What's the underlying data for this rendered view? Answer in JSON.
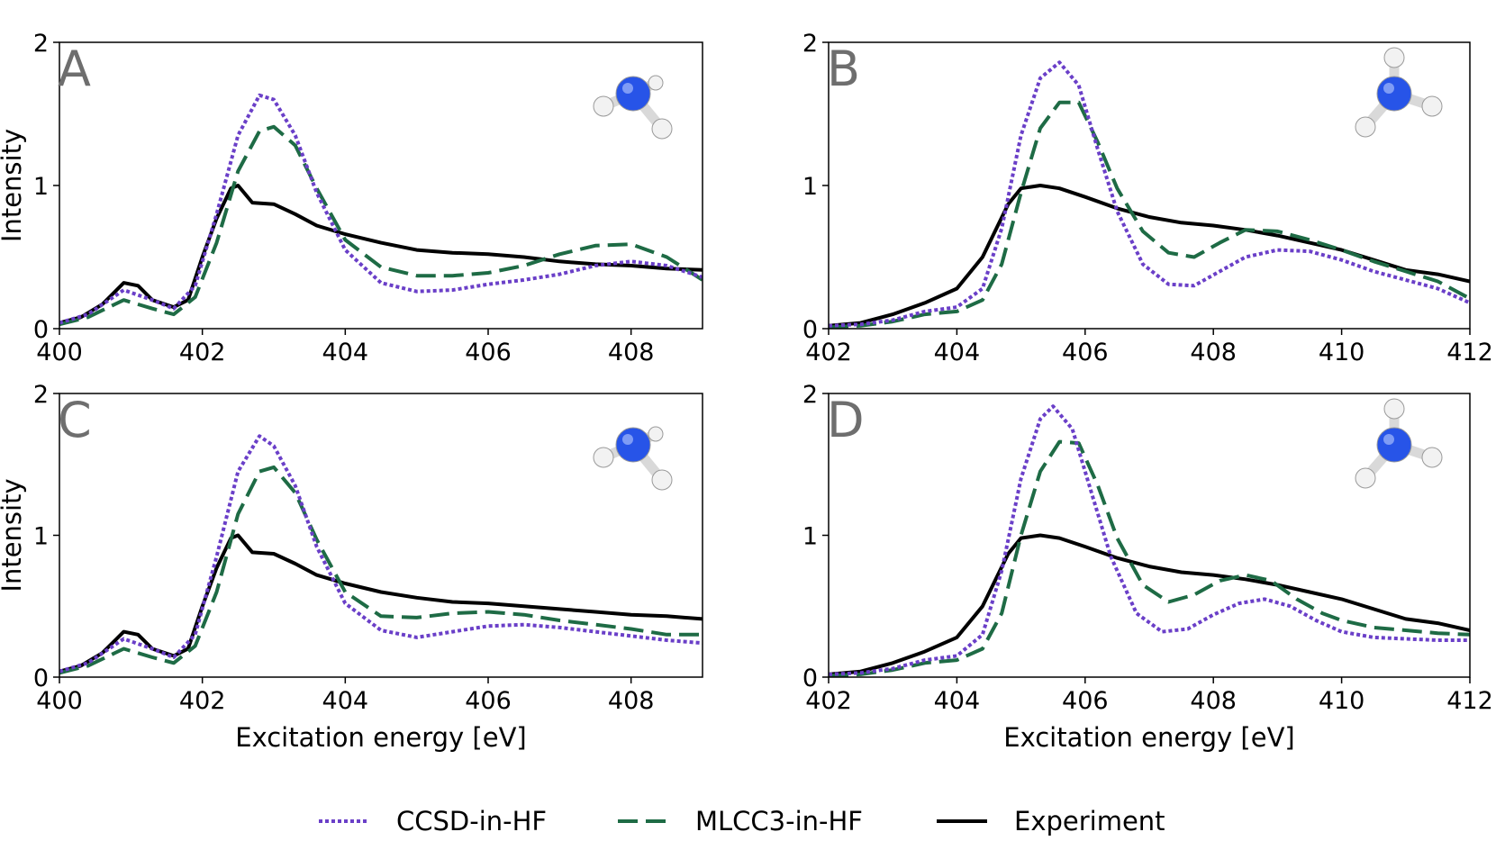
{
  "series_styles": [
    {
      "name": "CCSD-in-HF",
      "color": "#6a3fc8",
      "dash": "dotted"
    },
    {
      "name": "MLCC3-in-HF",
      "color": "#1e6b45",
      "dash": "dashed"
    },
    {
      "name": "Experiment",
      "color": "#000000",
      "dash": "solid"
    }
  ],
  "chart_data": [
    {
      "type": "line",
      "panel": "A",
      "xlabel": "",
      "ylabel": "Intensity",
      "xlim": [
        400,
        409
      ],
      "ylim": [
        0,
        2
      ],
      "xticks": [
        "400",
        "402",
        "404",
        "406",
        "408"
      ],
      "yticks": [
        "0",
        "1",
        "2"
      ],
      "molecule": "ammonia-tilted",
      "series": [
        {
          "name": "CCSD-in-HF",
          "x": [
            400,
            400.4,
            400.9,
            401.3,
            401.6,
            401.9,
            402.2,
            402.5,
            402.8,
            403.0,
            403.3,
            403.6,
            404.0,
            404.5,
            405.0,
            405.5,
            406.0,
            406.5,
            407.0,
            407.5,
            408.0,
            408.5,
            409.0
          ],
          "y": [
            0.04,
            0.1,
            0.27,
            0.2,
            0.14,
            0.3,
            0.8,
            1.35,
            1.63,
            1.6,
            1.35,
            0.95,
            0.55,
            0.32,
            0.26,
            0.27,
            0.31,
            0.34,
            0.38,
            0.44,
            0.47,
            0.44,
            0.36
          ]
        },
        {
          "name": "MLCC3-in-HF",
          "x": [
            400,
            400.4,
            400.9,
            401.3,
            401.6,
            401.9,
            402.2,
            402.5,
            402.8,
            403.0,
            403.3,
            403.6,
            404.0,
            404.5,
            405.0,
            405.5,
            406.0,
            406.5,
            407.0,
            407.5,
            408.0,
            408.5,
            409.0
          ],
          "y": [
            0.03,
            0.08,
            0.2,
            0.14,
            0.1,
            0.22,
            0.6,
            1.1,
            1.38,
            1.41,
            1.28,
            0.98,
            0.62,
            0.43,
            0.37,
            0.37,
            0.39,
            0.44,
            0.52,
            0.58,
            0.59,
            0.5,
            0.34
          ]
        },
        {
          "name": "Experiment",
          "x": [
            400,
            400.3,
            400.6,
            400.9,
            401.1,
            401.3,
            401.6,
            401.8,
            402.0,
            402.2,
            402.4,
            402.5,
            402.7,
            403.0,
            403.3,
            403.6,
            404.0,
            404.5,
            405.0,
            405.5,
            406.0,
            406.5,
            407.0,
            407.5,
            408.0,
            408.5,
            409.0
          ],
          "y": [
            0.04,
            0.08,
            0.17,
            0.32,
            0.3,
            0.2,
            0.15,
            0.2,
            0.5,
            0.77,
            0.98,
            1.0,
            0.88,
            0.87,
            0.8,
            0.72,
            0.66,
            0.6,
            0.55,
            0.53,
            0.52,
            0.5,
            0.47,
            0.45,
            0.44,
            0.42,
            0.41
          ]
        }
      ]
    },
    {
      "type": "line",
      "panel": "B",
      "xlabel": "",
      "ylabel": "",
      "xlim": [
        402,
        412
      ],
      "ylim": [
        0,
        2
      ],
      "xticks": [
        "402",
        "404",
        "406",
        "408",
        "410",
        "412"
      ],
      "yticks": [
        "0",
        "1",
        "2"
      ],
      "molecule": "ammonia-upright",
      "series": [
        {
          "name": "CCSD-in-HF",
          "x": [
            402,
            402.5,
            403,
            403.5,
            404,
            404.4,
            404.7,
            405.0,
            405.3,
            405.6,
            405.9,
            406.2,
            406.5,
            406.9,
            407.3,
            407.7,
            408.1,
            408.5,
            409.0,
            409.5,
            410.0,
            410.5,
            411.0,
            411.5,
            412.0
          ],
          "y": [
            0.02,
            0.03,
            0.06,
            0.12,
            0.15,
            0.28,
            0.7,
            1.35,
            1.75,
            1.86,
            1.7,
            1.25,
            0.82,
            0.45,
            0.31,
            0.3,
            0.4,
            0.5,
            0.55,
            0.54,
            0.48,
            0.4,
            0.34,
            0.28,
            0.18
          ]
        },
        {
          "name": "MLCC3-in-HF",
          "x": [
            402,
            402.5,
            403,
            403.5,
            404,
            404.4,
            404.7,
            405.0,
            405.3,
            405.6,
            405.9,
            406.2,
            406.5,
            406.9,
            407.3,
            407.7,
            408.1,
            408.5,
            409.0,
            409.5,
            410.0,
            410.5,
            411.0,
            411.5,
            412.0
          ],
          "y": [
            0.01,
            0.02,
            0.05,
            0.1,
            0.12,
            0.2,
            0.45,
            0.95,
            1.4,
            1.58,
            1.58,
            1.3,
            0.98,
            0.68,
            0.53,
            0.5,
            0.6,
            0.69,
            0.68,
            0.62,
            0.55,
            0.47,
            0.4,
            0.33,
            0.21
          ]
        },
        {
          "name": "Experiment",
          "x": [
            402,
            402.5,
            403,
            403.5,
            404,
            404.4,
            404.8,
            405.0,
            405.3,
            405.6,
            406.0,
            406.5,
            407.0,
            407.5,
            408.0,
            408.5,
            409.0,
            409.5,
            410.0,
            410.5,
            411.0,
            411.5,
            412.0
          ],
          "y": [
            0.02,
            0.04,
            0.1,
            0.18,
            0.28,
            0.5,
            0.87,
            0.98,
            1.0,
            0.98,
            0.92,
            0.84,
            0.78,
            0.74,
            0.72,
            0.69,
            0.65,
            0.6,
            0.55,
            0.48,
            0.41,
            0.38,
            0.33
          ]
        }
      ]
    },
    {
      "type": "line",
      "panel": "C",
      "xlabel": "Excitation energy [eV]",
      "ylabel": "Intensity",
      "xlim": [
        400,
        409
      ],
      "ylim": [
        0,
        2
      ],
      "xticks": [
        "400",
        "402",
        "404",
        "406",
        "408"
      ],
      "yticks": [
        "0",
        "1",
        "2"
      ],
      "molecule": "ammonia-tilted",
      "series": [
        {
          "name": "CCSD-in-HF",
          "x": [
            400,
            400.4,
            400.9,
            401.3,
            401.6,
            401.9,
            402.2,
            402.5,
            402.8,
            403.0,
            403.3,
            403.6,
            404.0,
            404.5,
            405.0,
            405.5,
            406.0,
            406.5,
            407.0,
            407.5,
            408.0,
            408.5,
            409.0
          ],
          "y": [
            0.04,
            0.1,
            0.27,
            0.2,
            0.14,
            0.3,
            0.85,
            1.45,
            1.7,
            1.63,
            1.35,
            0.92,
            0.52,
            0.33,
            0.28,
            0.32,
            0.36,
            0.37,
            0.35,
            0.32,
            0.29,
            0.26,
            0.24
          ]
        },
        {
          "name": "MLCC3-in-HF",
          "x": [
            400,
            400.4,
            400.9,
            401.3,
            401.6,
            401.9,
            402.2,
            402.5,
            402.8,
            403.0,
            403.3,
            403.6,
            404.0,
            404.5,
            405.0,
            405.5,
            406.0,
            406.5,
            407.0,
            407.5,
            408.0,
            408.5,
            409.0
          ],
          "y": [
            0.03,
            0.08,
            0.2,
            0.14,
            0.1,
            0.22,
            0.6,
            1.15,
            1.45,
            1.48,
            1.3,
            0.97,
            0.6,
            0.43,
            0.42,
            0.45,
            0.46,
            0.44,
            0.4,
            0.37,
            0.34,
            0.3,
            0.3
          ]
        },
        {
          "name": "Experiment",
          "x": [
            400,
            400.3,
            400.6,
            400.9,
            401.1,
            401.3,
            401.6,
            401.8,
            402.0,
            402.2,
            402.4,
            402.5,
            402.7,
            403.0,
            403.3,
            403.6,
            404.0,
            404.5,
            405.0,
            405.5,
            406.0,
            406.5,
            407.0,
            407.5,
            408.0,
            408.5,
            409.0
          ],
          "y": [
            0.04,
            0.08,
            0.17,
            0.32,
            0.3,
            0.2,
            0.15,
            0.2,
            0.5,
            0.77,
            0.98,
            1.0,
            0.88,
            0.87,
            0.8,
            0.72,
            0.66,
            0.6,
            0.56,
            0.53,
            0.52,
            0.5,
            0.48,
            0.46,
            0.44,
            0.43,
            0.41
          ]
        }
      ]
    },
    {
      "type": "line",
      "panel": "D",
      "xlabel": "Excitation energy [eV]",
      "ylabel": "",
      "xlim": [
        402,
        412
      ],
      "ylim": [
        0,
        2
      ],
      "xticks": [
        "402",
        "404",
        "406",
        "408",
        "410",
        "412"
      ],
      "yticks": [
        "0",
        "1",
        "2"
      ],
      "molecule": "ammonia-upright",
      "series": [
        {
          "name": "CCSD-in-HF",
          "x": [
            402,
            402.5,
            403,
            403.5,
            404,
            404.4,
            404.7,
            405.0,
            405.3,
            405.5,
            405.8,
            406.1,
            406.4,
            406.8,
            407.2,
            407.6,
            408.0,
            408.4,
            408.8,
            409.2,
            409.6,
            410.0,
            410.5,
            411.0,
            411.5,
            412.0
          ],
          "y": [
            0.02,
            0.03,
            0.06,
            0.12,
            0.15,
            0.3,
            0.75,
            1.4,
            1.82,
            1.91,
            1.75,
            1.3,
            0.85,
            0.45,
            0.32,
            0.34,
            0.44,
            0.52,
            0.55,
            0.5,
            0.4,
            0.32,
            0.28,
            0.27,
            0.26,
            0.26
          ]
        },
        {
          "name": "MLCC3-in-HF",
          "x": [
            402,
            402.5,
            403,
            403.5,
            404,
            404.4,
            404.7,
            405.0,
            405.3,
            405.6,
            405.9,
            406.2,
            406.5,
            406.9,
            407.3,
            407.7,
            408.1,
            408.5,
            408.9,
            409.3,
            409.7,
            410.0,
            410.5,
            411.0,
            411.5,
            412.0
          ],
          "y": [
            0.01,
            0.02,
            0.05,
            0.1,
            0.12,
            0.2,
            0.45,
            1.0,
            1.45,
            1.66,
            1.65,
            1.35,
            0.98,
            0.65,
            0.53,
            0.58,
            0.68,
            0.72,
            0.68,
            0.55,
            0.45,
            0.4,
            0.35,
            0.33,
            0.31,
            0.3
          ]
        },
        {
          "name": "Experiment",
          "x": [
            402,
            402.5,
            403,
            403.5,
            404,
            404.4,
            404.8,
            405.0,
            405.3,
            405.6,
            406.0,
            406.5,
            407.0,
            407.5,
            408.0,
            408.5,
            409.0,
            409.5,
            410.0,
            410.5,
            411.0,
            411.5,
            412.0
          ],
          "y": [
            0.02,
            0.04,
            0.1,
            0.18,
            0.28,
            0.5,
            0.87,
            0.98,
            1.0,
            0.98,
            0.92,
            0.84,
            0.78,
            0.74,
            0.72,
            0.69,
            0.65,
            0.6,
            0.55,
            0.48,
            0.41,
            0.38,
            0.33
          ]
        }
      ]
    }
  ]
}
